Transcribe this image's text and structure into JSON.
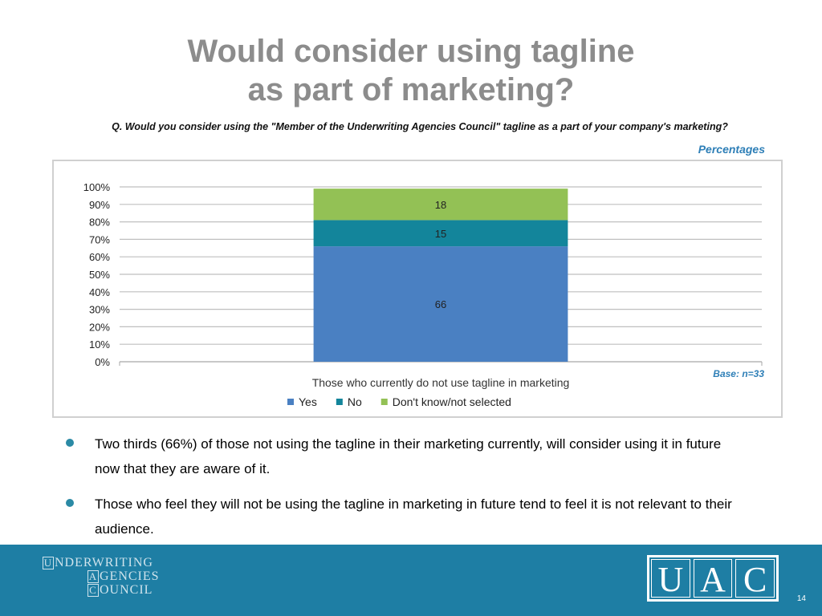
{
  "slide": {
    "title_line1": "Would consider using tagline",
    "title_line2": "as part of marketing?",
    "question": "Q. Would you consider using the \"Member of the Underwriting Agencies Council\" tagline as a part of your company's marketing?",
    "unit_note": "Percentages",
    "base_note": "Base: n=33",
    "page_number": "14"
  },
  "bullets": [
    "Two thirds (66%) of those not using the tagline in their marketing currently, will consider using it in future now that they are aware of it.",
    "Those who feel they will not be using the tagline in marketing in future tend to feel it is not relevant to their audience."
  ],
  "footer": {
    "council_line1_initial": "U",
    "council_line1_rest": "NDERWRITING",
    "council_line2_initial": "A",
    "council_line2_rest": "GENCIES",
    "council_line3_initial": "C",
    "council_line3_rest": "OUNCIL",
    "uac_letters": [
      "U",
      "A",
      "C"
    ],
    "footer_color": "#1e7ea4"
  },
  "chart_data": {
    "type": "bar",
    "stacked": true,
    "categories": [
      "Those who currently do not use tagline in marketing"
    ],
    "series": [
      {
        "name": "Yes",
        "values": [
          66
        ],
        "color": "#4a80c2"
      },
      {
        "name": "No",
        "values": [
          15
        ],
        "color": "#13859b"
      },
      {
        "name": "Don't know/not selected",
        "values": [
          18
        ],
        "color": "#93c155"
      }
    ],
    "ylim": [
      0,
      100
    ],
    "yticks": [
      "0%",
      "10%",
      "20%",
      "30%",
      "40%",
      "50%",
      "60%",
      "70%",
      "80%",
      "90%",
      "100%"
    ],
    "xlabel": "Those who currently do not use tagline in marketing",
    "grid": true,
    "legend": "bottom"
  }
}
